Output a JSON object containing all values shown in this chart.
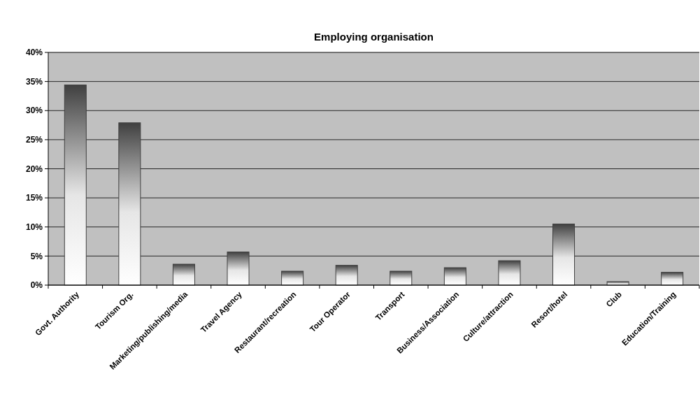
{
  "chart_data": {
    "type": "bar",
    "title": "Employing organisation",
    "categories": [
      "Govt. Authority",
      "Tourism Org.",
      "Marketing/publishing/media",
      "Travel Agency",
      "Restaurant/recreation",
      "Tour Operator",
      "Transport",
      "Business/Association",
      "Culture/attraction",
      "Resort/hotel",
      "Club",
      "Education/Training"
    ],
    "values": [
      34.4,
      27.9,
      3.6,
      5.7,
      2.4,
      3.4,
      2.4,
      3.0,
      4.2,
      10.5,
      0.6,
      2.2
    ],
    "color": "#404040",
    "ylim": [
      0,
      40
    ],
    "yticks": [
      {
        "value": 0,
        "label": "0%"
      },
      {
        "value": 5,
        "label": "5%"
      },
      {
        "value": 10,
        "label": "10%"
      },
      {
        "value": 15,
        "label": "15%"
      },
      {
        "value": 20,
        "label": "20%"
      },
      {
        "value": 25,
        "label": "25%"
      },
      {
        "value": 30,
        "label": "30%"
      },
      {
        "value": 35,
        "label": "35%"
      },
      {
        "value": 40,
        "label": "40%"
      }
    ],
    "grid": "y"
  }
}
